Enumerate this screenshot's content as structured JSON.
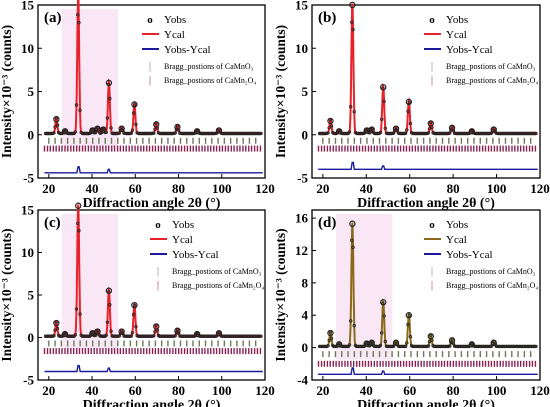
{
  "figure": {
    "x_label": "Diffraction angle 2θ (°)",
    "y_label": "Intensity×10⁻³ (counts)",
    "x_ticks": [
      20,
      40,
      60,
      80,
      100,
      120
    ],
    "legend_markers": {
      "obs": "o",
      "bragg": "|"
    },
    "colors": {
      "obs": "#222222",
      "cal_red": "#e8212a",
      "cal_olive": "#8a6a1a",
      "diff": "#1a1a9c",
      "bragg1": "#6a7a5a",
      "bragg2": "#8a2050",
      "shade": "#f4d4ec"
    }
  },
  "chart_data": [
    {
      "type": "line",
      "panel": "(a)",
      "cal_color": "red",
      "xlim": [
        15,
        120
      ],
      "ylim": [
        -5,
        15
      ],
      "y_ticks": [
        -5,
        0,
        5,
        10,
        15
      ],
      "series_labels": [
        "Yobs",
        "Ycal",
        "Yobs-Ycal",
        "Bragg_postions of CaMnO₃",
        "Bragg_postions of CaMn₂O₄"
      ],
      "peaks": [
        {
          "x": 23.5,
          "y": 1.8
        },
        {
          "x": 27.5,
          "y": 0.4
        },
        {
          "x": 33.6,
          "y": 16.0
        },
        {
          "x": 40.2,
          "y": 0.5
        },
        {
          "x": 42.5,
          "y": 0.7
        },
        {
          "x": 45.2,
          "y": 0.6
        },
        {
          "x": 47.8,
          "y": 6.0
        },
        {
          "x": 53.7,
          "y": 0.7
        },
        {
          "x": 59.6,
          "y": 3.5
        },
        {
          "x": 69.7,
          "y": 1.2
        },
        {
          "x": 79.5,
          "y": 0.9
        },
        {
          "x": 88.6,
          "y": 0.4
        },
        {
          "x": 98.7,
          "y": 0.5
        }
      ],
      "diff_spikes": [
        {
          "x": 33.6,
          "y": 0.7
        },
        {
          "x": 47.8,
          "y": 0.4
        }
      ],
      "bragg_rows_y": [
        -0.7,
        -1.6
      ],
      "diff_offset": -4.4
    },
    {
      "type": "line",
      "panel": "(b)",
      "cal_color": "red",
      "xlim": [
        15,
        120
      ],
      "ylim": [
        -5,
        15
      ],
      "y_ticks": [
        -5,
        0,
        5,
        10,
        15
      ],
      "series_labels": [
        "Yobs",
        "Ycal",
        "Yobs-Ycal",
        "Bragg_postions of CaMnO₃",
        "Bragg_postions of CaMn₂O₄"
      ],
      "peaks": [
        {
          "x": 23.5,
          "y": 1.6
        },
        {
          "x": 27.5,
          "y": 0.4
        },
        {
          "x": 33.6,
          "y": 15.0
        },
        {
          "x": 40.2,
          "y": 0.5
        },
        {
          "x": 42.5,
          "y": 0.6
        },
        {
          "x": 47.8,
          "y": 5.5
        },
        {
          "x": 53.7,
          "y": 0.7
        },
        {
          "x": 59.6,
          "y": 3.8
        },
        {
          "x": 69.7,
          "y": 1.3
        },
        {
          "x": 79.5,
          "y": 0.8
        },
        {
          "x": 88.6,
          "y": 0.4
        },
        {
          "x": 98.7,
          "y": 0.6
        }
      ],
      "diff_spikes": [
        {
          "x": 33.6,
          "y": 0.8
        },
        {
          "x": 47.8,
          "y": 0.4
        }
      ],
      "bragg_rows_y": [
        -0.7,
        -1.6
      ],
      "diff_offset": -4.0
    },
    {
      "type": "line",
      "panel": "(c)",
      "cal_color": "red",
      "xlim": [
        15,
        120
      ],
      "ylim": [
        -5,
        15
      ],
      "y_ticks": [
        -5,
        0,
        5,
        10,
        15
      ],
      "series_labels": [
        "Yobs",
        "Ycal",
        "Yobs-Ycal",
        "Bragg_postions of CaMnO₃",
        "Bragg_postions of CaMn₂O₄"
      ],
      "peaks": [
        {
          "x": 23.5,
          "y": 1.7
        },
        {
          "x": 27.5,
          "y": 0.4
        },
        {
          "x": 33.6,
          "y": 15.5
        },
        {
          "x": 40.2,
          "y": 0.5
        },
        {
          "x": 42.5,
          "y": 0.7
        },
        {
          "x": 47.8,
          "y": 5.5
        },
        {
          "x": 53.7,
          "y": 0.7
        },
        {
          "x": 59.6,
          "y": 3.8
        },
        {
          "x": 69.7,
          "y": 1.3
        },
        {
          "x": 79.5,
          "y": 0.8
        },
        {
          "x": 88.6,
          "y": 0.4
        },
        {
          "x": 98.7,
          "y": 0.5
        }
      ],
      "diff_spikes": [
        {
          "x": 33.6,
          "y": 0.7
        },
        {
          "x": 47.8,
          "y": 0.4
        }
      ],
      "bragg_rows_y": [
        -0.7,
        -1.6
      ],
      "diff_offset": -4.0
    },
    {
      "type": "line",
      "panel": "(d)",
      "cal_color": "olive",
      "xlim": [
        15,
        120
      ],
      "ylim": [
        -4,
        17
      ],
      "y_ticks": [
        -4,
        0,
        4,
        8,
        12,
        16
      ],
      "series_labels": [
        "Yobs",
        "Ycal",
        "Yobs-Ycal",
        "Bragg_postions of CaMnO₃",
        "Bragg_postions of CaMn₂O₄"
      ],
      "peaks": [
        {
          "x": 23.5,
          "y": 1.8
        },
        {
          "x": 27.5,
          "y": 0.4
        },
        {
          "x": 33.6,
          "y": 15.3
        },
        {
          "x": 40.2,
          "y": 0.5
        },
        {
          "x": 42.5,
          "y": 0.6
        },
        {
          "x": 47.8,
          "y": 5.6
        },
        {
          "x": 53.7,
          "y": 0.6
        },
        {
          "x": 59.6,
          "y": 4.0
        },
        {
          "x": 69.7,
          "y": 1.4
        },
        {
          "x": 79.5,
          "y": 0.9
        },
        {
          "x": 88.6,
          "y": 0.4
        },
        {
          "x": 98.7,
          "y": 0.6
        }
      ],
      "diff_spikes": [
        {
          "x": 33.6,
          "y": 0.8
        },
        {
          "x": 47.8,
          "y": 0.4
        }
      ],
      "bragg_rows_y": [
        -0.8,
        -2.0
      ],
      "diff_offset": -3.3
    }
  ]
}
